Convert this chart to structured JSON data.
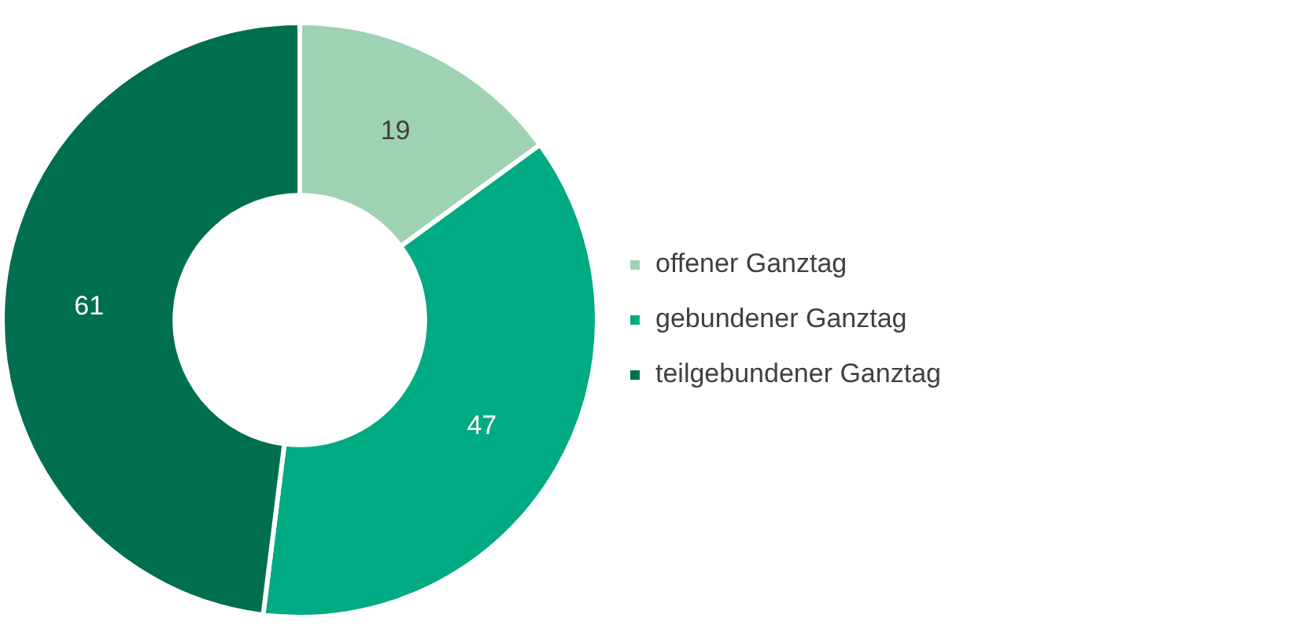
{
  "chart_data": {
    "type": "donut",
    "categories": [
      "offener Ganztag",
      "gebundener Ganztag",
      "teilgebundener Ganztag"
    ],
    "values": [
      19,
      47,
      61
    ],
    "colors": [
      "#9fd2b3",
      "#00aa82",
      "#006f50"
    ],
    "data_labels": true,
    "legend": "right"
  }
}
